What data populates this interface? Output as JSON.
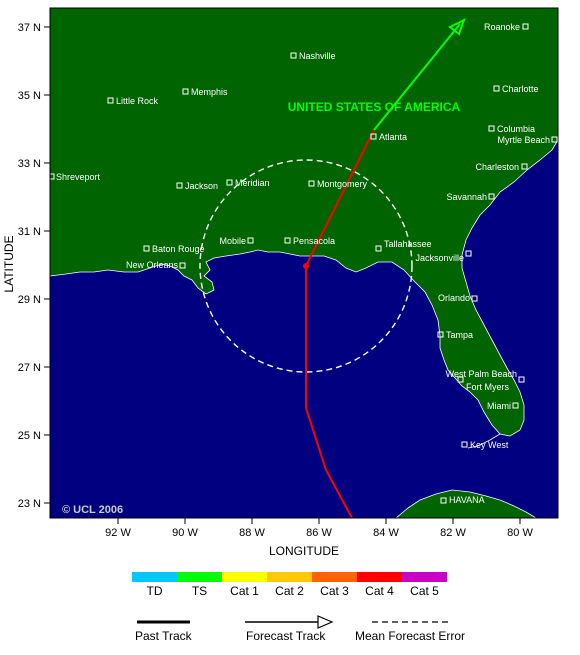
{
  "map": {
    "country_label": "UNITED STATES OF AMERICA",
    "copyright": "© UCL 2006",
    "x_axis_title": "LONGITUDE",
    "y_axis_title": "LATITUDE",
    "lat_ticks": [
      "37 N",
      "35 N",
      "33 N",
      "31 N",
      "29 N",
      "27 N",
      "25 N",
      "23 N"
    ],
    "lon_ticks": [
      "92 W",
      "90 W",
      "88 W",
      "86 W",
      "84 W",
      "82 W",
      "80 W"
    ],
    "cities": [
      {
        "name": "Roanoke"
      },
      {
        "name": "Nashville"
      },
      {
        "name": "Memphis"
      },
      {
        "name": "Little Rock"
      },
      {
        "name": "Charlotte"
      },
      {
        "name": "Columbia"
      },
      {
        "name": "Myrtle Beach"
      },
      {
        "name": "Atlanta"
      },
      {
        "name": "Charleston"
      },
      {
        "name": "Shreveport"
      },
      {
        "name": "Jackson"
      },
      {
        "name": "Meridian"
      },
      {
        "name": "Montgomery"
      },
      {
        "name": "Savannah"
      },
      {
        "name": "Mobile"
      },
      {
        "name": "Pensacola"
      },
      {
        "name": "Tallahassee"
      },
      {
        "name": "Jacksonville"
      },
      {
        "name": "Baton Rouge"
      },
      {
        "name": "New Orleans"
      },
      {
        "name": "Orlando"
      },
      {
        "name": "Tampa"
      },
      {
        "name": "West Palm Beach"
      },
      {
        "name": "Fort Myers"
      },
      {
        "name": "Miami"
      },
      {
        "name": "Key West"
      },
      {
        "name": "HAVANA"
      }
    ],
    "colors": {
      "land": "#006400",
      "sea": "#000080",
      "past_track": "#ff0000",
      "forecast_track": "#00ff00",
      "error_circle": "#ffffff",
      "city_marker": "#ffffff"
    }
  },
  "legend": {
    "categories": [
      {
        "label": "TD",
        "color": "#00c8ff"
      },
      {
        "label": "TS",
        "color": "#00ff00"
      },
      {
        "label": "Cat 1",
        "color": "#ffff00"
      },
      {
        "label": "Cat 2",
        "color": "#ffc800"
      },
      {
        "label": "Cat 3",
        "color": "#ff6400"
      },
      {
        "label": "Cat 4",
        "color": "#ff0000"
      },
      {
        "label": "Cat 5",
        "color": "#c800c8"
      }
    ],
    "past_track_label": "Past Track",
    "forecast_track_label": "Forecast Track",
    "mean_error_label": "Mean Forecast Error"
  }
}
